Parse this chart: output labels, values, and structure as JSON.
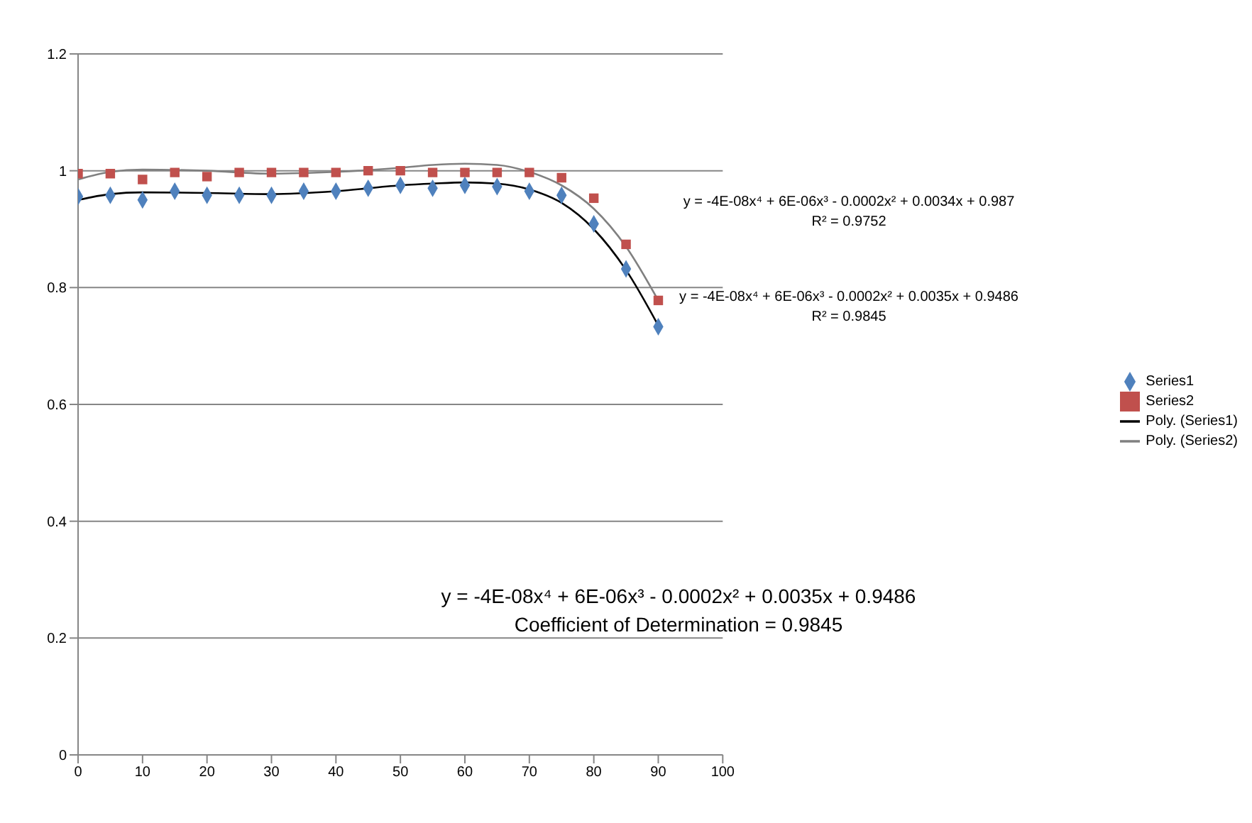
{
  "chart_data": {
    "type": "scatter",
    "x": [
      0,
      5,
      10,
      15,
      20,
      25,
      30,
      35,
      40,
      45,
      50,
      55,
      60,
      65,
      70,
      75,
      80,
      85,
      90
    ],
    "series": [
      {
        "name": "Series1",
        "marker": "diamond",
        "color": "#4f81bd",
        "values": [
          0.956,
          0.958,
          0.95,
          0.965,
          0.958,
          0.958,
          0.958,
          0.965,
          0.965,
          0.97,
          0.975,
          0.97,
          0.975,
          0.973,
          0.965,
          0.958,
          0.909,
          0.832,
          0.733
        ]
      },
      {
        "name": "Series2",
        "marker": "square",
        "color": "#c0504d",
        "values": [
          0.995,
          0.995,
          0.985,
          0.997,
          0.99,
          0.997,
          0.997,
          0.997,
          0.997,
          1.0,
          1.0,
          0.997,
          0.997,
          0.997,
          0.997,
          0.988,
          0.953,
          0.874,
          0.778
        ]
      },
      {
        "name": "Poly. (Series1)",
        "type": "line",
        "marker": "none",
        "color": "#000000",
        "x": [
          0,
          5,
          10,
          20,
          30,
          40,
          50,
          55,
          60,
          65,
          70,
          75,
          80,
          85,
          90
        ],
        "values": [
          0.95,
          0.96,
          0.963,
          0.962,
          0.96,
          0.965,
          0.975,
          0.978,
          0.98,
          0.978,
          0.968,
          0.945,
          0.9,
          0.83,
          0.735
        ]
      },
      {
        "name": "Poly. (Series2)",
        "type": "line",
        "marker": "none",
        "color": "#808080",
        "x": [
          0,
          5,
          10,
          20,
          30,
          40,
          50,
          55,
          60,
          65,
          70,
          75,
          80,
          85,
          90
        ],
        "values": [
          0.985,
          0.998,
          1.002,
          1.0,
          0.995,
          0.998,
          1.005,
          1.01,
          1.012,
          1.01,
          0.998,
          0.975,
          0.935,
          0.87,
          0.778
        ]
      }
    ],
    "xlim": [
      0,
      100
    ],
    "xticks": [
      0,
      10,
      20,
      30,
      40,
      50,
      60,
      70,
      80,
      90,
      100
    ],
    "ylim": [
      0,
      1.2
    ],
    "yticks": [
      0,
      0.2,
      0.4,
      0.6,
      0.8,
      1,
      1.2
    ],
    "grid": "y",
    "legend": "right",
    "annotations": [
      "y = -4E-08x⁴ + 6E-06x³ - 0.0002x² + 0.0034x + 0.987\nR² = 0.9752",
      "y = -4E-08x⁴ + 6E-06x³ - 0.0002x² + 0.0035x + 0.9486\nR² = 0.9845",
      "y = -4E-08x⁴ + 6E-06x³ - 0.0002x² + 0.0035x + 0.9486\nCoefficient of Determination = 0.9845"
    ]
  }
}
